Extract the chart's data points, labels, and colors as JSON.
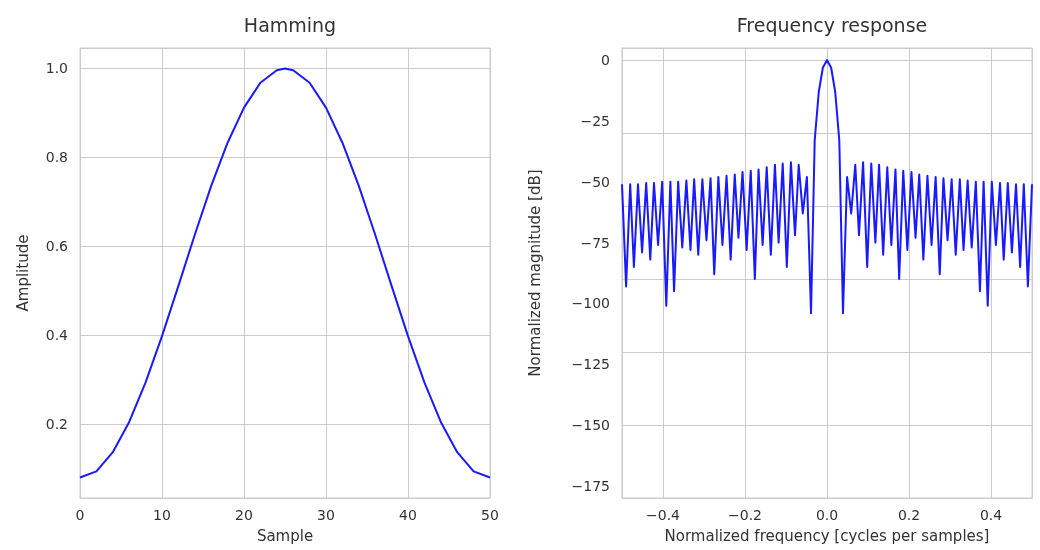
{
  "chart_data": [
    {
      "type": "line",
      "title": "Hamming",
      "xlabel": "Sample",
      "ylabel": "Amplitude",
      "x": [
        0,
        2,
        4,
        6,
        8,
        10,
        12,
        14,
        16,
        18,
        20,
        22,
        24,
        25,
        26,
        28,
        30,
        32,
        34,
        36,
        38,
        40,
        42,
        44,
        46,
        48,
        50
      ],
      "series": [
        {
          "color": "#1a1aff",
          "values": [
            0.08,
            0.094,
            0.137,
            0.205,
            0.294,
            0.398,
            0.511,
            0.626,
            0.736,
            0.833,
            0.912,
            0.968,
            0.996,
            1.0,
            0.996,
            0.968,
            0.912,
            0.833,
            0.736,
            0.626,
            0.511,
            0.398,
            0.294,
            0.205,
            0.137,
            0.094,
            0.08
          ]
        }
      ],
      "xlim": [
        0,
        50
      ],
      "xticks": [
        0,
        10,
        20,
        30,
        40,
        50
      ],
      "ylim": [
        0.034,
        1.046
      ],
      "yticks": [
        0.2,
        0.4,
        0.6,
        0.8,
        {
          "value": 1,
          "label": "1.0"
        }
      ],
      "grid": true,
      "marker": "none",
      "line_style": "solid"
    },
    {
      "type": "line",
      "title": "Frequency response",
      "xlabel": "Normalized frequency [cycles per samples]",
      "ylabel": "Normalized magnitude [dB]",
      "x": [
        -0.5,
        -0.49,
        -0.48,
        -0.471,
        -0.461,
        -0.451,
        -0.441,
        -0.431,
        -0.422,
        -0.412,
        -0.402,
        -0.392,
        -0.382,
        -0.373,
        -0.363,
        -0.353,
        -0.343,
        -0.333,
        -0.324,
        -0.314,
        -0.304,
        -0.294,
        -0.284,
        -0.275,
        -0.265,
        -0.255,
        -0.245,
        -0.235,
        -0.225,
        -0.216,
        -0.206,
        -0.196,
        -0.186,
        -0.176,
        -0.167,
        -0.157,
        -0.147,
        -0.137,
        -0.127,
        -0.118,
        -0.108,
        -0.098,
        -0.088,
        -0.078,
        -0.069,
        -0.059,
        -0.049,
        -0.039,
        -0.03,
        -0.02,
        -0.01,
        0,
        0.01,
        0.02,
        0.03,
        0.039,
        0.049,
        0.059,
        0.069,
        0.078,
        0.088,
        0.098,
        0.108,
        0.118,
        0.127,
        0.137,
        0.147,
        0.157,
        0.167,
        0.176,
        0.186,
        0.196,
        0.206,
        0.216,
        0.225,
        0.235,
        0.245,
        0.255,
        0.265,
        0.275,
        0.284,
        0.294,
        0.304,
        0.314,
        0.324,
        0.333,
        0.343,
        0.353,
        0.363,
        0.373,
        0.382,
        0.392,
        0.402,
        0.412,
        0.422,
        0.431,
        0.441,
        0.451,
        0.461,
        0.471,
        0.48,
        0.49,
        0.5
      ],
      "series": [
        {
          "color": "#1a1aff",
          "values": [
            -51,
            -93,
            -51,
            -85,
            -51,
            -79,
            -50.5,
            -82,
            -50.5,
            -76,
            -50,
            -101,
            -50,
            -95,
            -50,
            -77,
            -49.5,
            -78,
            -49,
            -80,
            -49,
            -74,
            -48.5,
            -88,
            -48,
            -76,
            -47.5,
            -82,
            -47,
            -73,
            -46,
            -78,
            -45.5,
            -90,
            -45,
            -76,
            -44,
            -80,
            -43,
            -75,
            -42.5,
            -85,
            -42,
            -72,
            -43,
            -63,
            -48,
            -104,
            -33,
            -13,
            -3,
            0,
            -3,
            -13,
            -33,
            -104,
            -48,
            -63,
            -43,
            -72,
            -42,
            -85,
            -42.5,
            -75,
            -43,
            -80,
            -44,
            -76,
            -45,
            -90,
            -45.5,
            -78,
            -46,
            -73,
            -47,
            -82,
            -47.5,
            -76,
            -48,
            -88,
            -48.5,
            -74,
            -49,
            -80,
            -49,
            -78,
            -49.5,
            -77,
            -50,
            -95,
            -50,
            -101,
            -50,
            -76,
            -50.5,
            -82,
            -50.5,
            -79,
            -51,
            -85,
            -51,
            -93,
            -51
          ]
        }
      ],
      "xlim": [
        -0.5,
        0.5
      ],
      "xticks": [
        {
          "value": -0.4,
          "label": "−0.4"
        },
        {
          "value": -0.2,
          "label": "−0.2"
        },
        {
          "value": 0,
          "label": "0.0"
        },
        0.2,
        0.4
      ],
      "ylim": [
        -180,
        5
      ],
      "yticks": [
        0,
        {
          "value": -25,
          "label": "−25"
        },
        {
          "value": -50,
          "label": "−50"
        },
        {
          "value": -75,
          "label": "−75"
        },
        {
          "value": -100,
          "label": "−100"
        },
        {
          "value": -125,
          "label": "−125"
        },
        {
          "value": -150,
          "label": "−150"
        },
        {
          "value": -175,
          "label": "−175"
        }
      ],
      "grid": true,
      "marker": "none",
      "line_style": "solid"
    }
  ]
}
